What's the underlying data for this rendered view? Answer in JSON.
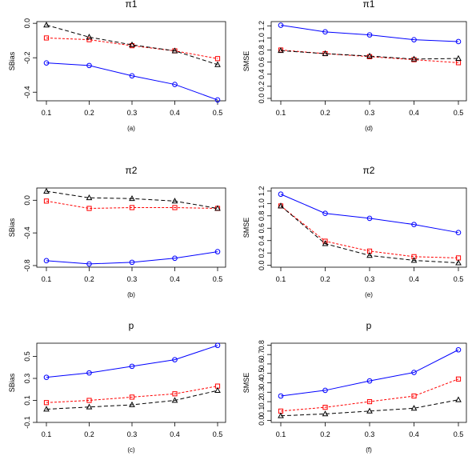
{
  "x_ticks": [
    "0.1",
    "0.2",
    "0.3",
    "0.4",
    "0.5"
  ],
  "series_style": [
    {
      "color": "#0000FF",
      "marker": "circle",
      "dash": ""
    },
    {
      "color": "#FF0000",
      "marker": "square",
      "dash": "3,2"
    },
    {
      "color": "#000000",
      "marker": "triangle",
      "dash": "5,3"
    }
  ],
  "chart_data": [
    {
      "type": "line",
      "title": "π1",
      "ylabel": "SBias",
      "caption": "(a)",
      "x": [
        0.1,
        0.2,
        0.3,
        0.4,
        0.5
      ],
      "xlim": [
        0.1,
        0.5
      ],
      "ylim": [
        -0.45,
        0.01
      ],
      "yticks": [
        0.0,
        -0.2,
        -0.4
      ],
      "ytick_labels": [
        "0.0",
        "-0.2",
        "-0.4"
      ],
      "series": [
        {
          "values": [
            -0.23,
            -0.245,
            -0.305,
            -0.355,
            -0.445
          ]
        },
        {
          "values": [
            -0.085,
            -0.095,
            -0.13,
            -0.16,
            -0.205
          ]
        },
        {
          "values": [
            -0.01,
            -0.08,
            -0.125,
            -0.16,
            -0.24
          ]
        }
      ]
    },
    {
      "type": "line",
      "title": "π1",
      "ylabel": "SMSE",
      "caption": "(d)",
      "x": [
        0.1,
        0.2,
        0.3,
        0.4,
        0.5
      ],
      "xlim": [
        0.1,
        0.5
      ],
      "ylim": [
        -0.04,
        1.27
      ],
      "yticks": [
        0.0,
        0.2,
        0.4,
        0.6,
        0.8,
        1.0,
        1.2
      ],
      "ytick_labels": [
        "0.0",
        "0.2",
        "0.4",
        "0.6",
        "0.8",
        "1.0",
        "1.2"
      ],
      "series": [
        {
          "values": [
            1.21,
            1.1,
            1.05,
            0.97,
            0.94
          ]
        },
        {
          "values": [
            0.8,
            0.74,
            0.69,
            0.64,
            0.59
          ]
        },
        {
          "values": [
            0.79,
            0.74,
            0.7,
            0.65,
            0.66
          ]
        }
      ]
    },
    {
      "type": "line",
      "title": "π2",
      "ylabel": "SBias",
      "caption": "(b)",
      "x": [
        0.1,
        0.2,
        0.3,
        0.4,
        0.5
      ],
      "xlim": [
        0.1,
        0.5
      ],
      "ylim": [
        -0.82,
        0.15
      ],
      "yticks": [
        0.0,
        -0.4,
        -0.8
      ],
      "ytick_labels": [
        "0.0",
        "-0.4",
        "-0.8"
      ],
      "series": [
        {
          "values": [
            -0.74,
            -0.78,
            -0.76,
            -0.71,
            -0.63
          ]
        },
        {
          "values": [
            -0.01,
            -0.1,
            -0.09,
            -0.09,
            -0.1
          ]
        },
        {
          "values": [
            0.11,
            0.03,
            0.02,
            -0.01,
            -0.1
          ]
        }
      ]
    },
    {
      "type": "line",
      "title": "π2",
      "ylabel": "SMSE",
      "caption": "(e)",
      "x": [
        0.1,
        0.2,
        0.3,
        0.4,
        0.5
      ],
      "xlim": [
        0.1,
        0.5
      ],
      "ylim": [
        -0.03,
        1.25
      ],
      "yticks": [
        0.0,
        0.2,
        0.4,
        0.6,
        0.8,
        1.0,
        1.2
      ],
      "ytick_labels": [
        "0.0",
        "0.2",
        "0.4",
        "0.6",
        "0.8",
        "1.0",
        "1.2"
      ],
      "series": [
        {
          "values": [
            1.15,
            0.84,
            0.76,
            0.66,
            0.53
          ]
        },
        {
          "values": [
            0.96,
            0.39,
            0.23,
            0.14,
            0.12
          ]
        },
        {
          "values": [
            0.96,
            0.35,
            0.16,
            0.08,
            0.04
          ]
        }
      ]
    },
    {
      "type": "line",
      "title": "p",
      "ylabel": "SBias",
      "caption": "(c)",
      "x": [
        0.1,
        0.2,
        0.3,
        0.4,
        0.5
      ],
      "xlim": [
        0.1,
        0.5
      ],
      "ylim": [
        -0.1,
        0.62
      ],
      "yticks": [
        -0.1,
        0.1,
        0.3,
        0.5
      ],
      "ytick_labels": [
        "-0.1",
        "0.1",
        "0.3",
        "0.5"
      ],
      "series": [
        {
          "values": [
            0.31,
            0.35,
            0.41,
            0.47,
            0.6
          ]
        },
        {
          "values": [
            0.08,
            0.1,
            0.13,
            0.16,
            0.23
          ]
        },
        {
          "values": [
            0.02,
            0.04,
            0.06,
            0.1,
            0.19
          ]
        }
      ]
    },
    {
      "type": "line",
      "title": "p",
      "ylabel": "SMSE",
      "caption": "(f)",
      "x": [
        0.1,
        0.2,
        0.3,
        0.4,
        0.5
      ],
      "xlim": [
        0.1,
        0.5
      ],
      "ylim": [
        -0.02,
        0.82
      ],
      "yticks": [
        0.0,
        0.1,
        0.2,
        0.3,
        0.4,
        0.5,
        0.6,
        0.7,
        0.8
      ],
      "ytick_labels": [
        "0.0",
        "0.1",
        "0.2",
        "0.3",
        "0.4",
        "0.5",
        "0.6",
        "0.7",
        "0.8"
      ],
      "series": [
        {
          "values": [
            0.26,
            0.32,
            0.42,
            0.51,
            0.75
          ]
        },
        {
          "values": [
            0.1,
            0.14,
            0.2,
            0.26,
            0.44
          ]
        },
        {
          "values": [
            0.05,
            0.07,
            0.1,
            0.13,
            0.22
          ]
        }
      ]
    }
  ]
}
